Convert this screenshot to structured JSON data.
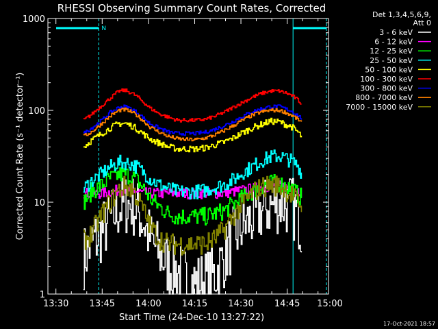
{
  "chart_data": {
    "type": "line",
    "title": "RHESSI Observing Summary Count Rates, Corrected",
    "xlabel": "Start Time (24-Dec-10 13:27:22)",
    "ylabel": "Corrected Count Rate (s⁻¹ detector⁻¹)",
    "y_scale": "log",
    "ylim": [
      1,
      1000
    ],
    "y_ticks": [
      "1",
      "10",
      "100",
      "1000"
    ],
    "x_unit": "minutes since 13:27:22",
    "xlim": [
      0,
      91
    ],
    "x_ticks": [
      {
        "label": "13:30",
        "value": 2.6
      },
      {
        "label": "13:45",
        "value": 17.6
      },
      {
        "label": "14:00",
        "value": 32.6
      },
      {
        "label": "14:15",
        "value": 47.6
      },
      {
        "label": "14:30",
        "value": 62.6
      },
      {
        "label": "14:45",
        "value": 77.6
      },
      {
        "label": "15:00",
        "value": 92.6
      }
    ],
    "legend_header": [
      "Det 1,3,4,5,6,9,",
      "Att 0"
    ],
    "legend_placement": "right",
    "timestamp": "17-Oct-2021 18:57",
    "night_marker": "N",
    "night_intervals": [
      {
        "start": 0,
        "end": 16.5
      },
      {
        "start": 79.5,
        "end": 94
      }
    ],
    "x": [
      11.5,
      14,
      17,
      20,
      23,
      25,
      27,
      29,
      31,
      33,
      36,
      39,
      42,
      45,
      48,
      51,
      54,
      57,
      60,
      63,
      66,
      69,
      72,
      75,
      77,
      79,
      81,
      82.5
    ],
    "series": [
      {
        "name": "3 - 6 keV",
        "color": "#ffffff",
        "values": [
          2.5,
          3.5,
          4.5,
          6.5,
          8.5,
          9.5,
          9.5,
          8,
          6,
          4,
          2.8,
          2,
          1.8,
          1.4,
          1.3,
          1.4,
          1.6,
          2.5,
          4,
          5.5,
          6.5,
          8,
          9,
          10,
          9.5,
          9,
          7,
          5
        ]
      },
      {
        "name": "6 - 12 keV",
        "color": "#ff00ff",
        "values": [
          12.5,
          12.5,
          12.5,
          13,
          13.5,
          13.5,
          13.5,
          13,
          12.5,
          12.5,
          12.5,
          12.5,
          12.5,
          12.5,
          12.5,
          12.5,
          12.5,
          12.5,
          13,
          13.5,
          14,
          14.5,
          15,
          15,
          14.5,
          14,
          13.5,
          13
        ]
      },
      {
        "name": "12 - 25 keV",
        "color": "#00ff00",
        "values": [
          10,
          13,
          15,
          18,
          20,
          20,
          19,
          17,
          14,
          11,
          9,
          7.5,
          7,
          7,
          7,
          7,
          7.5,
          8,
          9.5,
          11,
          13,
          15,
          16,
          16,
          15,
          14,
          12,
          11
        ]
      },
      {
        "name": "25 - 50 keV",
        "color": "#00ffff",
        "values": [
          14,
          17,
          20,
          24,
          27,
          27,
          26,
          24,
          21,
          18,
          15.5,
          14,
          13,
          13,
          13,
          13.5,
          14.5,
          15.5,
          17.5,
          21,
          24,
          28,
          31,
          32,
          30,
          28,
          25,
          20
        ]
      },
      {
        "name": "50 - 100 keV",
        "color": "#ffff00",
        "values": [
          40,
          47,
          55,
          64,
          72,
          72,
          68,
          62,
          55,
          49,
          44,
          40,
          38,
          38,
          38,
          39,
          42,
          45,
          50,
          57,
          64,
          70,
          76,
          75,
          70,
          66,
          58,
          50
        ]
      },
      {
        "name": "100 - 300 keV",
        "color": "#ff0000",
        "values": [
          78,
          90,
          110,
          135,
          162,
          165,
          155,
          140,
          122,
          106,
          92,
          84,
          78,
          78,
          78,
          80,
          86,
          95,
          108,
          122,
          138,
          152,
          162,
          162,
          155,
          145,
          130,
          115
        ]
      },
      {
        "name": "300 - 800 keV",
        "color": "#0000ff",
        "values": [
          56,
          64,
          76,
          94,
          108,
          110,
          104,
          94,
          82,
          72,
          64,
          58,
          56,
          56,
          56,
          58,
          62,
          68,
          76,
          86,
          96,
          104,
          110,
          110,
          104,
          98,
          88,
          80
        ]
      },
      {
        "name": "800 - 7000 keV",
        "color": "#ff8000",
        "values": [
          52,
          58,
          70,
          86,
          100,
          102,
          96,
          87,
          76,
          66,
          58,
          52,
          49,
          48,
          48,
          50,
          54,
          60,
          68,
          78,
          88,
          96,
          100,
          100,
          95,
          88,
          80,
          72
        ]
      },
      {
        "name": "7000 - 15000 keV",
        "color": "#808000",
        "values": [
          3.8,
          4.5,
          7,
          10,
          13.5,
          15,
          14,
          11,
          8,
          5.5,
          4,
          3.5,
          3.5,
          3.5,
          3.5,
          3.5,
          4,
          5,
          7,
          9.5,
          12.5,
          14.5,
          15.5,
          15,
          13.5,
          12,
          10,
          9
        ]
      }
    ]
  }
}
